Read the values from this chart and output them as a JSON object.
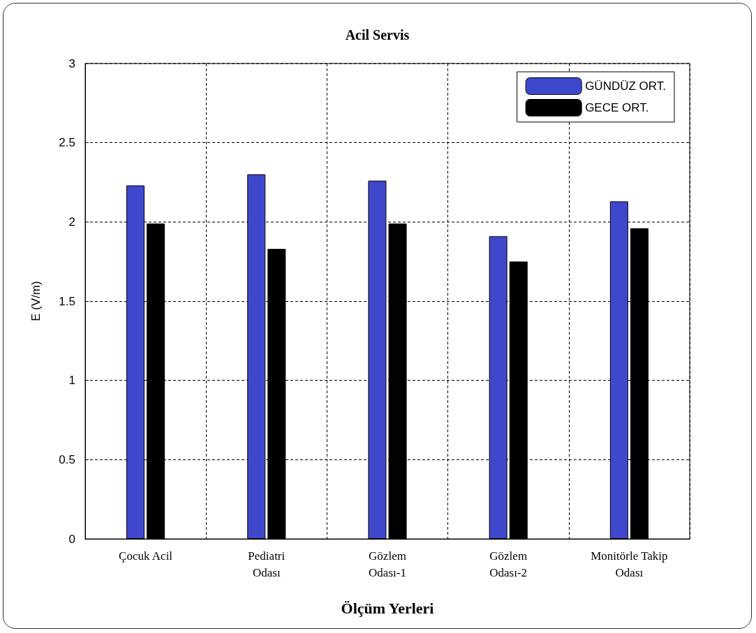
{
  "chart_data": {
    "type": "bar",
    "title": "Acil Servis",
    "xlabel": "Ölçüm Yerleri",
    "ylabel": "E (V/m)",
    "categories": [
      "Çocuk Acil",
      "Pediatri Odası",
      "Gözlem Odası-1",
      "Gözlem Odası-2",
      "Monitörle Takip Odası"
    ],
    "series": [
      {
        "name": "GÜNDÜZ ORT.",
        "color": "#3f48cc",
        "values": [
          2.23,
          2.3,
          2.26,
          1.91,
          2.13
        ]
      },
      {
        "name": "GECE ORT.",
        "color": "#000000",
        "values": [
          1.99,
          1.83,
          1.99,
          1.75,
          1.96
        ]
      }
    ],
    "ylim": [
      0,
      3
    ],
    "yticks": [
      0,
      0.5,
      1,
      1.5,
      2,
      2.5,
      3
    ],
    "grid": true,
    "legend": "top right"
  }
}
